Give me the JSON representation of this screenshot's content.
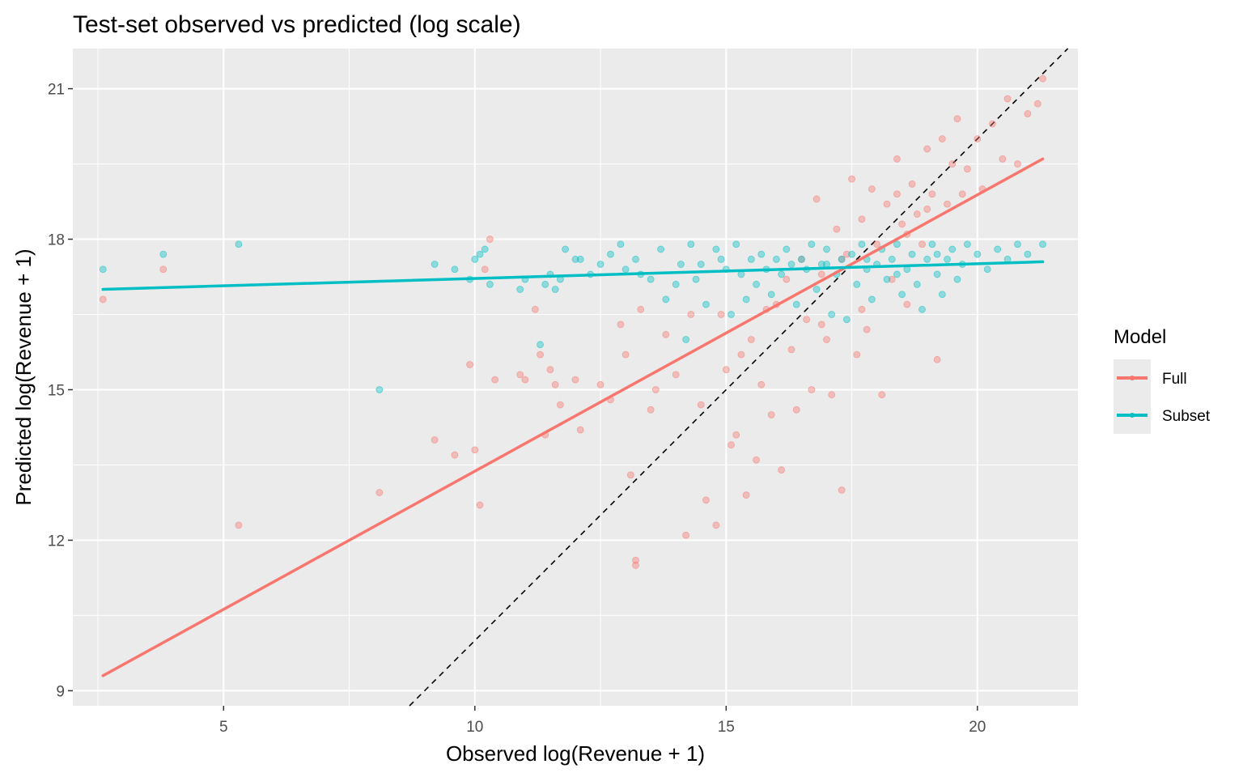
{
  "chart_data": {
    "type": "scatter",
    "title": "Test-set observed vs predicted (log scale)",
    "xlabel": "Observed log(Revenue + 1)",
    "ylabel": "Predicted log(Revenue + 1)",
    "xlim": [
      2.0,
      22.0
    ],
    "ylim": [
      8.7,
      21.8
    ],
    "x_ticks": [
      5,
      10,
      15,
      20
    ],
    "y_ticks": [
      9,
      12,
      15,
      18,
      21
    ],
    "grid": true,
    "reference_line": {
      "type": "identity",
      "style": "dashed",
      "color": "#000000"
    },
    "legend": {
      "title": "Model",
      "position": "right",
      "entries": [
        "Full",
        "Subset"
      ]
    },
    "series": [
      {
        "name": "Full",
        "color": "#F8766D",
        "fit": {
          "x": [
            2.6,
            21.3
          ],
          "y": [
            9.3,
            19.6
          ]
        },
        "points": [
          [
            2.6,
            16.8
          ],
          [
            3.8,
            17.4
          ],
          [
            5.3,
            12.3
          ],
          [
            8.1,
            12.95
          ],
          [
            9.2,
            14.0
          ],
          [
            9.6,
            13.7
          ],
          [
            9.9,
            15.5
          ],
          [
            10.0,
            13.8
          ],
          [
            10.1,
            12.7
          ],
          [
            10.2,
            17.4
          ],
          [
            10.3,
            18.0
          ],
          [
            10.4,
            15.2
          ],
          [
            10.9,
            15.3
          ],
          [
            11.0,
            15.2
          ],
          [
            11.2,
            16.6
          ],
          [
            11.3,
            15.7
          ],
          [
            11.4,
            14.1
          ],
          [
            11.5,
            15.4
          ],
          [
            11.6,
            15.1
          ],
          [
            11.7,
            14.7
          ],
          [
            12.0,
            15.2
          ],
          [
            12.1,
            14.2
          ],
          [
            12.5,
            15.1
          ],
          [
            12.7,
            14.8
          ],
          [
            12.9,
            16.3
          ],
          [
            13.0,
            15.7
          ],
          [
            13.1,
            13.3
          ],
          [
            13.2,
            11.6
          ],
          [
            13.2,
            11.5
          ],
          [
            13.3,
            16.6
          ],
          [
            13.5,
            14.6
          ],
          [
            13.6,
            15.0
          ],
          [
            13.8,
            16.1
          ],
          [
            14.0,
            15.3
          ],
          [
            14.2,
            12.1
          ],
          [
            14.3,
            16.5
          ],
          [
            14.5,
            14.7
          ],
          [
            14.6,
            12.8
          ],
          [
            14.8,
            12.3
          ],
          [
            14.9,
            16.5
          ],
          [
            15.0,
            15.4
          ],
          [
            15.1,
            13.9
          ],
          [
            15.2,
            14.1
          ],
          [
            15.3,
            15.7
          ],
          [
            15.4,
            12.9
          ],
          [
            15.5,
            16.0
          ],
          [
            15.6,
            13.6
          ],
          [
            15.7,
            15.1
          ],
          [
            15.8,
            16.6
          ],
          [
            15.9,
            14.5
          ],
          [
            16.0,
            16.7
          ],
          [
            16.1,
            13.4
          ],
          [
            16.2,
            17.2
          ],
          [
            16.3,
            15.8
          ],
          [
            16.4,
            14.6
          ],
          [
            16.5,
            17.6
          ],
          [
            16.6,
            16.4
          ],
          [
            16.7,
            15.0
          ],
          [
            16.8,
            18.8
          ],
          [
            16.9,
            17.3
          ],
          [
            17.0,
            16.0
          ],
          [
            17.1,
            14.9
          ],
          [
            17.2,
            18.2
          ],
          [
            17.3,
            13.0
          ],
          [
            17.4,
            17.7
          ],
          [
            17.5,
            19.2
          ],
          [
            17.6,
            15.7
          ],
          [
            17.7,
            18.4
          ],
          [
            17.8,
            16.2
          ],
          [
            17.9,
            19.0
          ],
          [
            18.0,
            17.9
          ],
          [
            18.1,
            14.9
          ],
          [
            18.2,
            18.7
          ],
          [
            18.3,
            17.2
          ],
          [
            18.4,
            19.6
          ],
          [
            18.5,
            18.3
          ],
          [
            18.6,
            16.7
          ],
          [
            18.7,
            19.1
          ],
          [
            18.8,
            18.5
          ],
          [
            18.9,
            17.9
          ],
          [
            19.0,
            19.8
          ],
          [
            19.1,
            18.9
          ],
          [
            19.2,
            15.6
          ],
          [
            19.3,
            20.0
          ],
          [
            19.4,
            18.7
          ],
          [
            19.5,
            19.5
          ],
          [
            19.6,
            20.4
          ],
          [
            19.7,
            18.9
          ],
          [
            19.8,
            19.4
          ],
          [
            20.0,
            20.0
          ],
          [
            20.1,
            19.0
          ],
          [
            20.3,
            20.3
          ],
          [
            20.5,
            19.6
          ],
          [
            20.6,
            20.8
          ],
          [
            20.8,
            19.5
          ],
          [
            21.0,
            20.5
          ],
          [
            21.2,
            20.7
          ],
          [
            21.3,
            21.2
          ],
          [
            16.9,
            16.3
          ],
          [
            17.7,
            16.6
          ],
          [
            18.4,
            18.9
          ],
          [
            18.6,
            18.1
          ],
          [
            19.0,
            18.6
          ],
          [
            17.3,
            17.6
          ]
        ]
      },
      {
        "name": "Subset",
        "color": "#00BFC4",
        "fit": {
          "x": [
            2.6,
            21.3
          ],
          "y": [
            17.0,
            17.55
          ]
        },
        "points": [
          [
            2.6,
            17.4
          ],
          [
            3.8,
            17.7
          ],
          [
            5.3,
            17.9
          ],
          [
            8.1,
            15.0
          ],
          [
            9.2,
            17.5
          ],
          [
            9.6,
            17.4
          ],
          [
            9.9,
            17.2
          ],
          [
            10.0,
            17.6
          ],
          [
            10.1,
            17.7
          ],
          [
            10.2,
            17.8
          ],
          [
            10.3,
            17.1
          ],
          [
            10.9,
            17.0
          ],
          [
            11.0,
            17.2
          ],
          [
            11.3,
            15.9
          ],
          [
            11.4,
            17.1
          ],
          [
            11.5,
            17.3
          ],
          [
            11.6,
            17.0
          ],
          [
            11.7,
            17.2
          ],
          [
            11.8,
            17.8
          ],
          [
            12.0,
            17.6
          ],
          [
            12.1,
            17.6
          ],
          [
            12.3,
            17.3
          ],
          [
            12.5,
            17.5
          ],
          [
            12.7,
            17.7
          ],
          [
            12.9,
            17.9
          ],
          [
            13.0,
            17.4
          ],
          [
            13.2,
            17.6
          ],
          [
            13.3,
            17.3
          ],
          [
            13.5,
            17.2
          ],
          [
            13.7,
            17.8
          ],
          [
            13.8,
            16.8
          ],
          [
            14.0,
            17.1
          ],
          [
            14.1,
            17.5
          ],
          [
            14.2,
            16.0
          ],
          [
            14.3,
            17.9
          ],
          [
            14.4,
            17.2
          ],
          [
            14.5,
            17.5
          ],
          [
            14.6,
            16.7
          ],
          [
            14.8,
            17.8
          ],
          [
            14.9,
            17.6
          ],
          [
            15.0,
            17.4
          ],
          [
            15.1,
            16.5
          ],
          [
            15.2,
            17.9
          ],
          [
            15.3,
            17.3
          ],
          [
            15.4,
            16.8
          ],
          [
            15.5,
            17.6
          ],
          [
            15.6,
            17.1
          ],
          [
            15.7,
            17.7
          ],
          [
            15.8,
            17.4
          ],
          [
            15.9,
            16.9
          ],
          [
            16.0,
            17.6
          ],
          [
            16.1,
            17.3
          ],
          [
            16.2,
            17.8
          ],
          [
            16.3,
            17.5
          ],
          [
            16.4,
            16.7
          ],
          [
            16.5,
            17.6
          ],
          [
            16.6,
            17.4
          ],
          [
            16.7,
            17.9
          ],
          [
            16.8,
            17.0
          ],
          [
            16.9,
            17.5
          ],
          [
            17.0,
            17.8
          ],
          [
            17.1,
            16.5
          ],
          [
            17.2,
            17.3
          ],
          [
            17.3,
            17.6
          ],
          [
            17.4,
            16.4
          ],
          [
            17.5,
            17.7
          ],
          [
            17.6,
            17.1
          ],
          [
            17.7,
            17.9
          ],
          [
            17.8,
            17.4
          ],
          [
            17.9,
            16.8
          ],
          [
            18.0,
            17.5
          ],
          [
            18.1,
            17.8
          ],
          [
            18.2,
            17.2
          ],
          [
            18.3,
            17.6
          ],
          [
            18.4,
            17.9
          ],
          [
            18.5,
            16.9
          ],
          [
            18.6,
            17.4
          ],
          [
            18.7,
            17.7
          ],
          [
            18.8,
            17.1
          ],
          [
            18.9,
            16.6
          ],
          [
            19.0,
            17.6
          ],
          [
            19.1,
            17.9
          ],
          [
            19.2,
            17.3
          ],
          [
            19.3,
            16.9
          ],
          [
            19.4,
            17.6
          ],
          [
            19.5,
            17.8
          ],
          [
            19.6,
            17.2
          ],
          [
            19.7,
            17.5
          ],
          [
            19.8,
            17.9
          ],
          [
            20.0,
            17.7
          ],
          [
            20.2,
            17.4
          ],
          [
            20.4,
            17.8
          ],
          [
            20.6,
            17.6
          ],
          [
            20.8,
            17.9
          ],
          [
            21.0,
            17.7
          ],
          [
            21.3,
            17.9
          ],
          [
            17.0,
            17.5
          ],
          [
            17.8,
            17.6
          ],
          [
            18.4,
            17.3
          ],
          [
            19.2,
            17.7
          ]
        ]
      }
    ]
  }
}
